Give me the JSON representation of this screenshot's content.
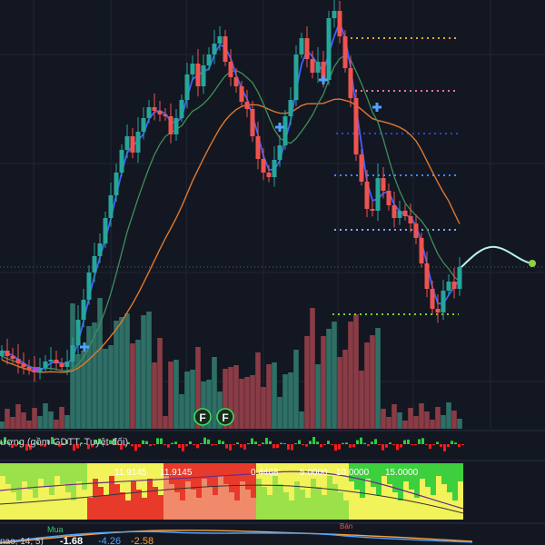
{
  "colors": {
    "background": "#131722",
    "grid": "#1f2433",
    "candle_up": "#26a69a",
    "candle_down": "#ef5350",
    "vol_up": "#2e6f66",
    "vol_down": "#8a3c45",
    "ma_fast": "#3d63ff",
    "ma_mid": "#3f8f5a",
    "ma_slow": "#e0782e",
    "projection": "#b8f0f0",
    "marker": "#4ea3ff",
    "level_orange": "#ff9f3a",
    "level_pink": "#ff6fa8",
    "level_navy": "#3b3bd8",
    "level_blue": "#3b8cff",
    "level_violet": "#8aa7ff",
    "level_green": "#7cd321"
  },
  "badges": {
    "f1": "F",
    "f2": "F"
  },
  "panels": {
    "flow_label": "ượng (gồm GDTT, Tuyệt đối)",
    "band_labels": [
      "11.9145",
      "11.9145",
      "0.4468",
      "5.0000",
      "10.0000",
      "15.0000"
    ],
    "osc_label_1": "Mua",
    "osc_label_2": "nao, 14, 5)",
    "osc_value_1": "-1.68",
    "osc_value_2": "-4.26",
    "osc_value_3": "-2.58",
    "osc_tag": "Bán"
  }
}
